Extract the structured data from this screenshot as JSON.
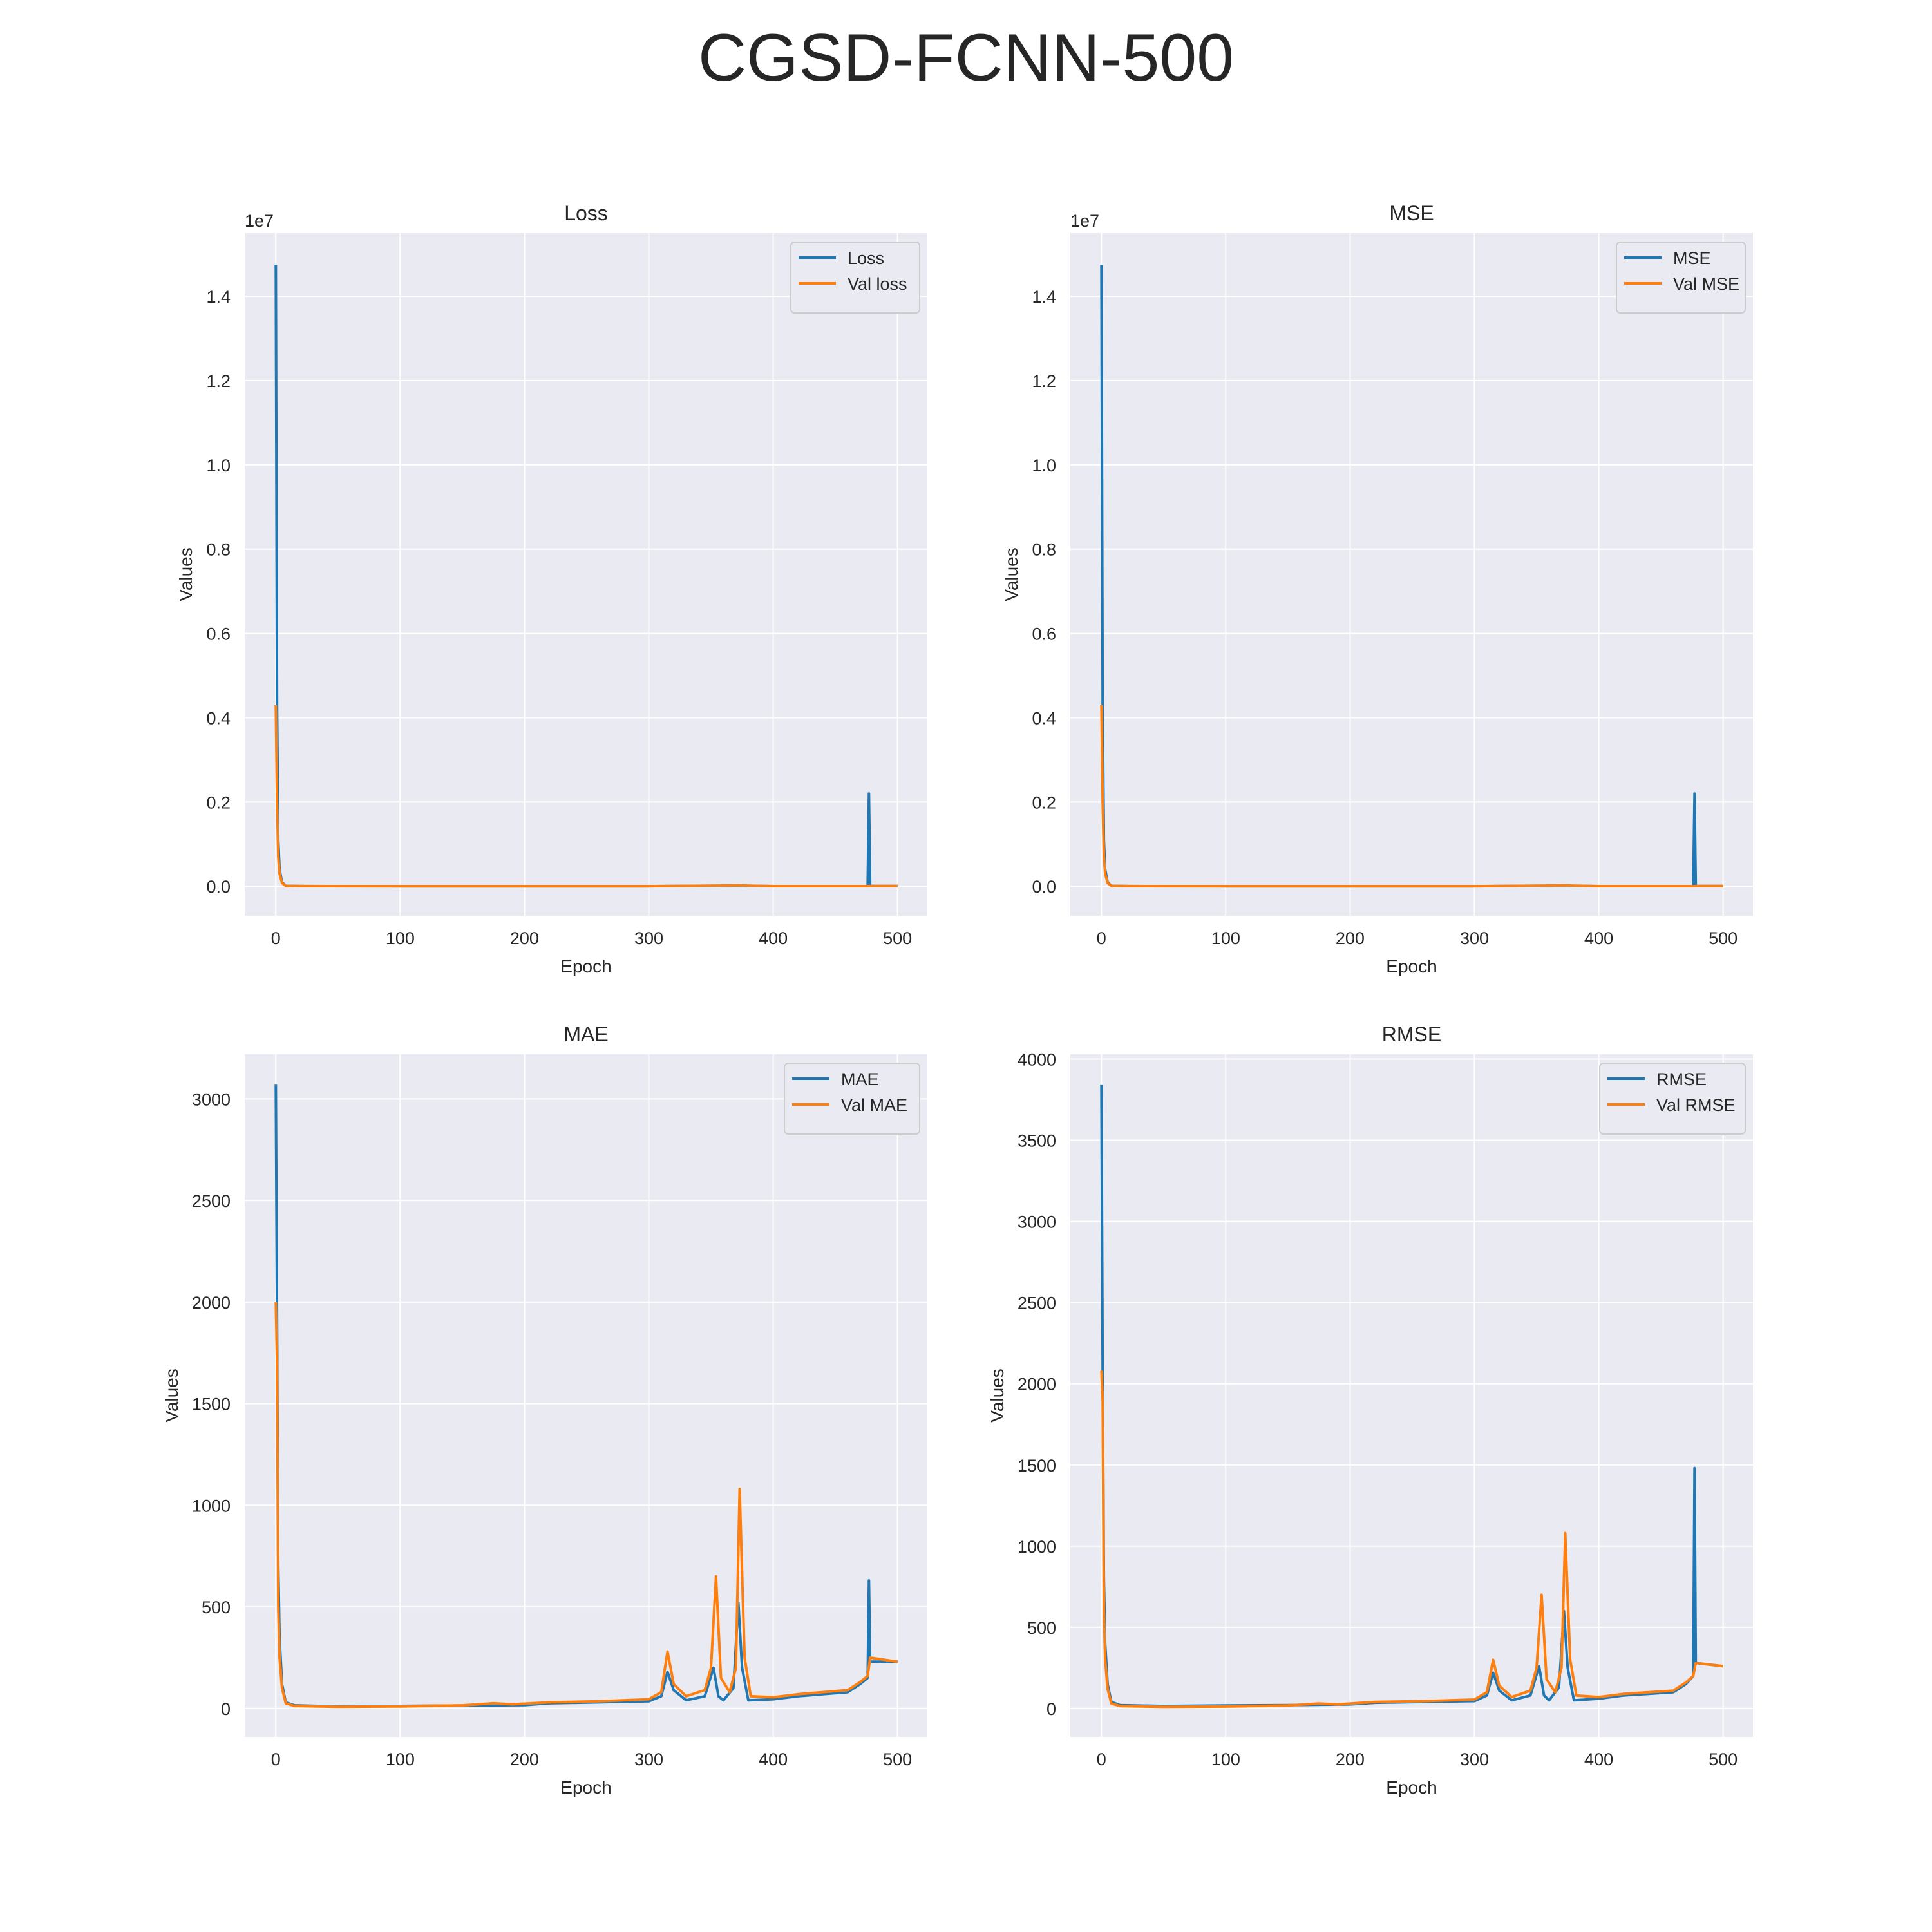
{
  "figure": {
    "title": "CGSD-FCNN-500"
  },
  "colors": {
    "series_1": "#1f77b4",
    "series_2": "#ff7f0e",
    "axes_bg": "#eaeaf2",
    "grid": "#ffffff"
  },
  "chart_data": [
    {
      "type": "line",
      "title": "Loss",
      "xlabel": "Epoch",
      "ylabel": "Values",
      "offset_label": "1e7",
      "xlim": [
        -25,
        524
      ],
      "ylim": [
        -0.07,
        1.55
      ],
      "xticks": [
        0,
        100,
        200,
        300,
        400,
        500
      ],
      "xtick_labels": [
        "0",
        "100",
        "200",
        "300",
        "400",
        "500"
      ],
      "yticks": [
        0.0,
        0.2,
        0.4,
        0.6,
        0.8,
        1.0,
        1.2,
        1.4
      ],
      "ytick_labels": [
        "0.0",
        "0.2",
        "0.4",
        "0.6",
        "0.8",
        "1.0",
        "1.2",
        "1.4"
      ],
      "grid": true,
      "legend": "upper right",
      "series": [
        {
          "name": "Loss",
          "color": "#1f77b4",
          "points": [
            [
              0,
              1.475
            ],
            [
              1,
              0.43
            ],
            [
              2,
              0.11
            ],
            [
              3,
              0.04
            ],
            [
              5,
              0.01
            ],
            [
              8,
              0.001
            ],
            [
              20,
              0.0004
            ],
            [
              100,
              0.0002
            ],
            [
              200,
              0.0002
            ],
            [
              300,
              0.0002
            ],
            [
              372,
              0.0015
            ],
            [
              400,
              0.0003
            ],
            [
              476,
              0.0003
            ],
            [
              477,
              0.22
            ],
            [
              478,
              0.0008
            ],
            [
              500,
              0.0008
            ]
          ]
        },
        {
          "name": "Val loss",
          "color": "#ff7f0e",
          "points": [
            [
              0,
              0.43
            ],
            [
              1,
              0.2
            ],
            [
              2,
              0.07
            ],
            [
              3,
              0.03
            ],
            [
              5,
              0.008
            ],
            [
              8,
              0.001
            ],
            [
              20,
              0.0004
            ],
            [
              100,
              0.0002
            ],
            [
              200,
              0.0002
            ],
            [
              300,
              0.0002
            ],
            [
              372,
              0.002
            ],
            [
              400,
              0.0003
            ],
            [
              476,
              0.0003
            ],
            [
              478,
              0.0008
            ],
            [
              500,
              0.0008
            ]
          ]
        }
      ]
    },
    {
      "type": "line",
      "title": "MSE",
      "xlabel": "Epoch",
      "ylabel": "Values",
      "offset_label": "1e7",
      "xlim": [
        -25,
        524
      ],
      "ylim": [
        -0.07,
        1.55
      ],
      "xticks": [
        0,
        100,
        200,
        300,
        400,
        500
      ],
      "xtick_labels": [
        "0",
        "100",
        "200",
        "300",
        "400",
        "500"
      ],
      "yticks": [
        0.0,
        0.2,
        0.4,
        0.6,
        0.8,
        1.0,
        1.2,
        1.4
      ],
      "ytick_labels": [
        "0.0",
        "0.2",
        "0.4",
        "0.6",
        "0.8",
        "1.0",
        "1.2",
        "1.4"
      ],
      "grid": true,
      "legend": "upper right",
      "series": [
        {
          "name": "MSE",
          "color": "#1f77b4",
          "points": [
            [
              0,
              1.475
            ],
            [
              1,
              0.43
            ],
            [
              2,
              0.11
            ],
            [
              3,
              0.04
            ],
            [
              5,
              0.01
            ],
            [
              8,
              0.001
            ],
            [
              20,
              0.0004
            ],
            [
              100,
              0.0002
            ],
            [
              200,
              0.0002
            ],
            [
              300,
              0.0002
            ],
            [
              372,
              0.0015
            ],
            [
              400,
              0.0003
            ],
            [
              476,
              0.0003
            ],
            [
              477,
              0.22
            ],
            [
              478,
              0.0008
            ],
            [
              500,
              0.0008
            ]
          ]
        },
        {
          "name": "Val MSE",
          "color": "#ff7f0e",
          "points": [
            [
              0,
              0.43
            ],
            [
              1,
              0.2
            ],
            [
              2,
              0.07
            ],
            [
              3,
              0.03
            ],
            [
              5,
              0.008
            ],
            [
              8,
              0.001
            ],
            [
              20,
              0.0004
            ],
            [
              100,
              0.0002
            ],
            [
              200,
              0.0002
            ],
            [
              300,
              0.0002
            ],
            [
              372,
              0.002
            ],
            [
              400,
              0.0003
            ],
            [
              476,
              0.0003
            ],
            [
              478,
              0.0008
            ],
            [
              500,
              0.0008
            ]
          ]
        }
      ]
    },
    {
      "type": "line",
      "title": "MAE",
      "xlabel": "Epoch",
      "ylabel": "Values",
      "offset_label": "",
      "xlim": [
        -25,
        524
      ],
      "ylim": [
        -140,
        3220
      ],
      "xticks": [
        0,
        100,
        200,
        300,
        400,
        500
      ],
      "xtick_labels": [
        "0",
        "100",
        "200",
        "300",
        "400",
        "500"
      ],
      "yticks": [
        0,
        500,
        1000,
        1500,
        2000,
        2500,
        3000
      ],
      "ytick_labels": [
        "0",
        "500",
        "1000",
        "1500",
        "2000",
        "2500",
        "3000"
      ],
      "grid": true,
      "legend": "upper right",
      "series": [
        {
          "name": "MAE",
          "color": "#1f77b4",
          "points": [
            [
              0,
              3070
            ],
            [
              1,
              1900
            ],
            [
              2,
              700
            ],
            [
              3,
              350
            ],
            [
              5,
              120
            ],
            [
              8,
              30
            ],
            [
              15,
              15
            ],
            [
              50,
              10
            ],
            [
              100,
              12
            ],
            [
              150,
              14
            ],
            [
              200,
              16
            ],
            [
              220,
              25
            ],
            [
              260,
              30
            ],
            [
              300,
              35
            ],
            [
              310,
              60
            ],
            [
              315,
              180
            ],
            [
              320,
              90
            ],
            [
              330,
              40
            ],
            [
              345,
              60
            ],
            [
              352,
              200
            ],
            [
              356,
              60
            ],
            [
              360,
              40
            ],
            [
              368,
              100
            ],
            [
              372,
              520
            ],
            [
              375,
              200
            ],
            [
              380,
              40
            ],
            [
              400,
              45
            ],
            [
              420,
              60
            ],
            [
              440,
              70
            ],
            [
              460,
              80
            ],
            [
              470,
              120
            ],
            [
              476,
              150
            ],
            [
              477,
              630
            ],
            [
              478,
              230
            ],
            [
              500,
              230
            ]
          ]
        },
        {
          "name": "Val MAE",
          "color": "#ff7f0e",
          "points": [
            [
              0,
              2000
            ],
            [
              1,
              1700
            ],
            [
              2,
              500
            ],
            [
              3,
              250
            ],
            [
              5,
              100
            ],
            [
              8,
              25
            ],
            [
              15,
              12
            ],
            [
              50,
              8
            ],
            [
              100,
              10
            ],
            [
              150,
              15
            ],
            [
              175,
              25
            ],
            [
              190,
              20
            ],
            [
              220,
              30
            ],
            [
              260,
              35
            ],
            [
              300,
              45
            ],
            [
              310,
              80
            ],
            [
              315,
              280
            ],
            [
              320,
              120
            ],
            [
              330,
              60
            ],
            [
              345,
              90
            ],
            [
              350,
              200
            ],
            [
              354,
              650
            ],
            [
              358,
              150
            ],
            [
              365,
              80
            ],
            [
              370,
              200
            ],
            [
              373,
              1080
            ],
            [
              377,
              250
            ],
            [
              382,
              60
            ],
            [
              400,
              55
            ],
            [
              420,
              70
            ],
            [
              440,
              80
            ],
            [
              460,
              90
            ],
            [
              470,
              130
            ],
            [
              476,
              160
            ],
            [
              478,
              250
            ],
            [
              500,
              230
            ]
          ]
        }
      ]
    },
    {
      "type": "line",
      "title": "RMSE",
      "xlabel": "Epoch",
      "ylabel": "Values",
      "offset_label": "",
      "xlim": [
        -25,
        524
      ],
      "ylim": [
        -175,
        4030
      ],
      "xticks": [
        0,
        100,
        200,
        300,
        400,
        500
      ],
      "xtick_labels": [
        "0",
        "100",
        "200",
        "300",
        "400",
        "500"
      ],
      "yticks": [
        0,
        500,
        1000,
        1500,
        2000,
        2500,
        3000,
        3500,
        4000
      ],
      "ytick_labels": [
        "0",
        "500",
        "1000",
        "1500",
        "2000",
        "2500",
        "3000",
        "3500",
        "4000"
      ],
      "grid": true,
      "legend": "upper right",
      "series": [
        {
          "name": "RMSE",
          "color": "#1f77b4",
          "points": [
            [
              0,
              3840
            ],
            [
              1,
              2080
            ],
            [
              2,
              800
            ],
            [
              3,
              400
            ],
            [
              5,
              150
            ],
            [
              8,
              40
            ],
            [
              15,
              20
            ],
            [
              50,
              15
            ],
            [
              100,
              18
            ],
            [
              150,
              20
            ],
            [
              200,
              25
            ],
            [
              220,
              35
            ],
            [
              260,
              40
            ],
            [
              300,
              45
            ],
            [
              310,
              80
            ],
            [
              315,
              220
            ],
            [
              320,
              110
            ],
            [
              330,
              50
            ],
            [
              345,
              80
            ],
            [
              352,
              260
            ],
            [
              356,
              80
            ],
            [
              360,
              50
            ],
            [
              368,
              130
            ],
            [
              372,
              600
            ],
            [
              375,
              250
            ],
            [
              380,
              50
            ],
            [
              400,
              60
            ],
            [
              420,
              80
            ],
            [
              440,
              90
            ],
            [
              460,
              100
            ],
            [
              470,
              150
            ],
            [
              476,
              200
            ],
            [
              477,
              1480
            ],
            [
              478,
              280
            ],
            [
              500,
              260
            ]
          ]
        },
        {
          "name": "Val RMSE",
          "color": "#ff7f0e",
          "points": [
            [
              0,
              2080
            ],
            [
              1,
              1900
            ],
            [
              2,
              600
            ],
            [
              3,
              300
            ],
            [
              5,
              120
            ],
            [
              8,
              30
            ],
            [
              15,
              15
            ],
            [
              50,
              10
            ],
            [
              100,
              12
            ],
            [
              150,
              18
            ],
            [
              175,
              30
            ],
            [
              190,
              25
            ],
            [
              220,
              40
            ],
            [
              260,
              45
            ],
            [
              300,
              55
            ],
            [
              310,
              100
            ],
            [
              315,
              300
            ],
            [
              320,
              140
            ],
            [
              330,
              70
            ],
            [
              345,
              110
            ],
            [
              350,
              250
            ],
            [
              354,
              700
            ],
            [
              358,
              180
            ],
            [
              365,
              100
            ],
            [
              370,
              250
            ],
            [
              373,
              1080
            ],
            [
              377,
              300
            ],
            [
              382,
              80
            ],
            [
              400,
              70
            ],
            [
              420,
              90
            ],
            [
              440,
              100
            ],
            [
              460,
              110
            ],
            [
              470,
              160
            ],
            [
              476,
              200
            ],
            [
              478,
              280
            ],
            [
              500,
              260
            ]
          ]
        }
      ]
    }
  ]
}
